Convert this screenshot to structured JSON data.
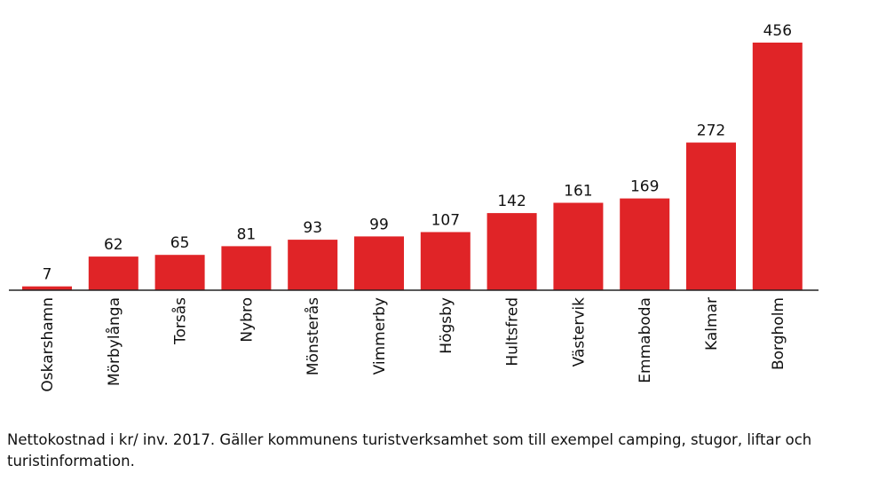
{
  "chart_data": {
    "type": "bar",
    "categories": [
      "Oskarshamn",
      "Mörbylånga",
      "Torsås",
      "Nybro",
      "Mönsterås",
      "Vimmerby",
      "Högsby",
      "Hultsfred",
      "Västervik",
      "Emmaboda",
      "Kalmar",
      "Borgholm"
    ],
    "values": [
      7,
      62,
      65,
      81,
      93,
      99,
      107,
      142,
      161,
      169,
      272,
      456
    ],
    "title": "",
    "xlabel": "",
    "ylabel": "",
    "ylim": [
      0,
      456
    ],
    "grid": false,
    "legend": "none",
    "bar_color": "#e02427",
    "data_labels": true
  },
  "caption": "Nettokostnad i kr/ inv. 2017. Gäller kommunens turistverksamhet som till exempel camping, stugor, liftar och turistinformation."
}
